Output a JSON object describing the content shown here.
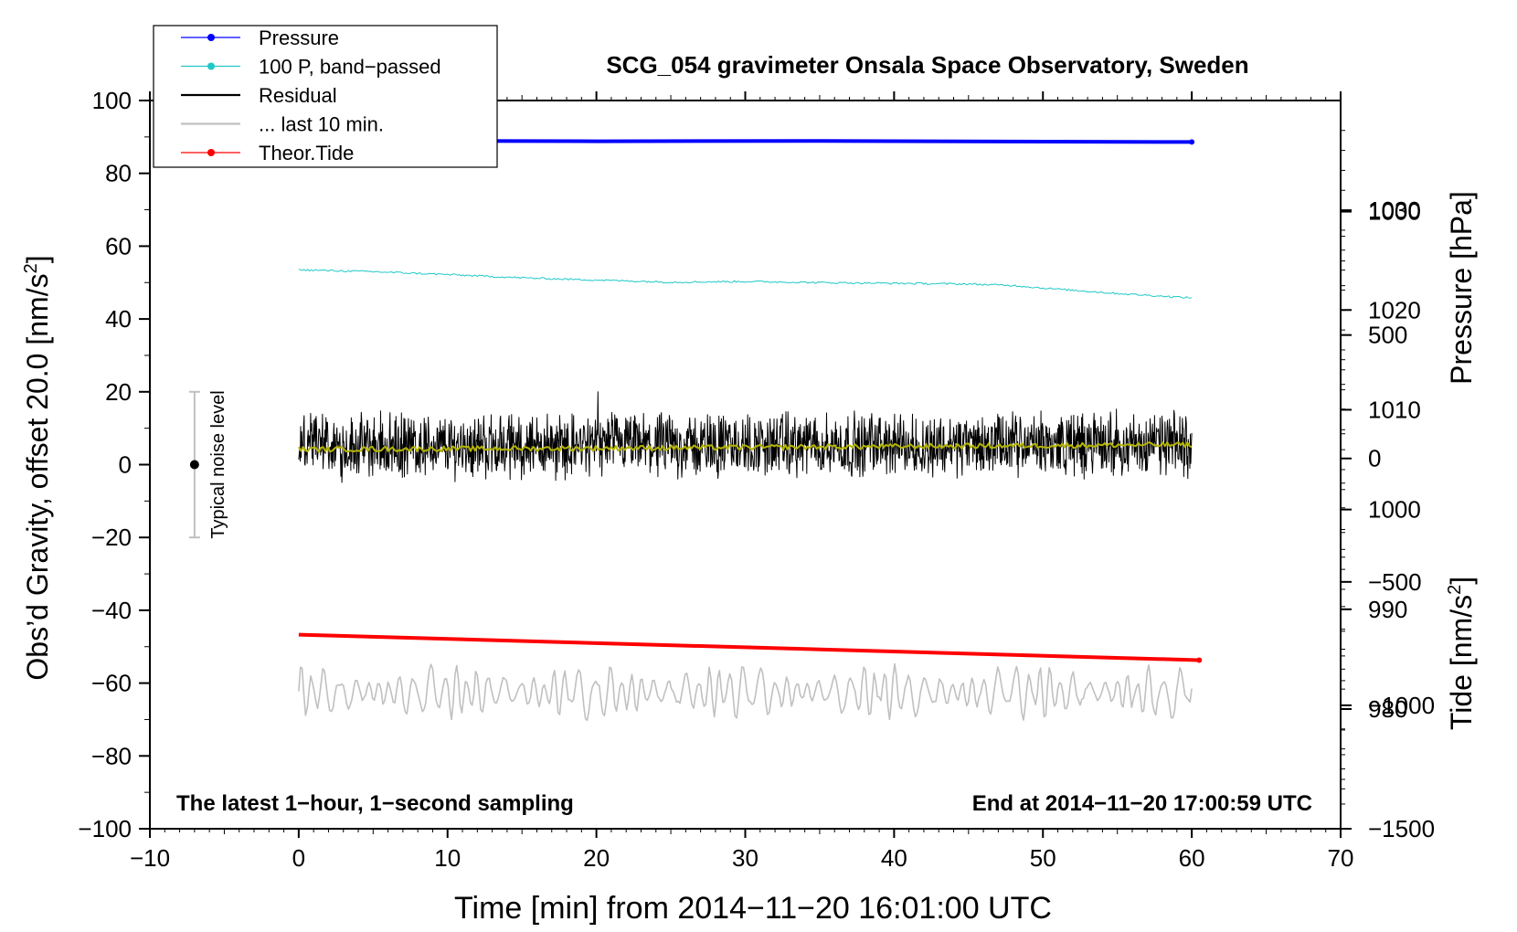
{
  "chart_data": {
    "type": "line",
    "title": "SCG_054 gravimeter Onsala Space Observatory, Sweden",
    "xlabel": "Time [min] from 2014−11−20 16:01:00 UTC",
    "ylabel_left": "Obs’d Gravity, offset 20.0 [nm/s",
    "ylabel_left_sup": "2",
    "ylabel_left_close": "]",
    "ylabel_right_pressure": "Pressure [hPa]",
    "ylabel_right_tide": "Tide [nm/s",
    "ylabel_right_tide_sup": "2",
    "ylabel_right_tide_close": "]",
    "xlim": [
      -10,
      70
    ],
    "xticks": [
      -10,
      0,
      10,
      20,
      30,
      40,
      50,
      60,
      70
    ],
    "xtick_labels": [
      "−10",
      "0",
      "10",
      "20",
      "30",
      "40",
      "50",
      "60",
      "70"
    ],
    "ylim": [
      -100,
      100
    ],
    "yticks": [
      -100,
      -80,
      -60,
      -40,
      -20,
      0,
      20,
      40,
      60,
      80,
      100
    ],
    "ytick_labels": [
      "−100",
      "−80",
      "−60",
      "−40",
      "−20",
      "0",
      "20",
      "40",
      "60",
      "80",
      "100"
    ],
    "pressure_axis": {
      "ylim": [
        968,
        1041
      ],
      "ticks": [
        980,
        990,
        1000,
        1010,
        1020,
        1030
      ],
      "tick_labels": [
        "980",
        "990",
        "1000",
        "1010",
        "1020",
        "1030"
      ]
    },
    "tide_axis": {
      "ylim": [
        -1500,
        1450
      ],
      "ticks": [
        -1500,
        -1000,
        -500,
        0,
        500,
        1000
      ],
      "tick_labels": [
        "−1500",
        "−1000",
        "−500",
        "0",
        "500",
        "1000"
      ]
    },
    "legend_position": "top-left",
    "legend": [
      {
        "label": "Pressure",
        "color": "#0000ff",
        "marker": true
      },
      {
        "label": "100 P, band−passed",
        "color": "#20c8c8",
        "marker": true
      },
      {
        "label": "Residual",
        "color": "#000000",
        "marker": false
      },
      {
        "label": "... last 10 min.",
        "color": "#c0c0c0",
        "marker": false
      },
      {
        "label": "Theor.Tide",
        "color": "#ff0000",
        "marker": true
      }
    ],
    "series": [
      {
        "name": "Pressure",
        "color": "#0000ff",
        "x": [
          0,
          20,
          35,
          50,
          60
        ],
        "y": [
          89.0,
          88.8,
          88.9,
          88.7,
          88.6
        ]
      },
      {
        "name": "100 P, band−passed",
        "color": "#20c8c8",
        "x": [
          0,
          5,
          10,
          15,
          20,
          25,
          30,
          35,
          40,
          45,
          48,
          50,
          55,
          60
        ],
        "y": [
          53.5,
          53.0,
          52.2,
          51.3,
          50.7,
          50.1,
          50.3,
          50.0,
          49.8,
          49.6,
          49.2,
          48.5,
          47.0,
          45.8
        ]
      },
      {
        "name": "Residual",
        "color": "#000000",
        "x_range": [
          0,
          60
        ],
        "center": 5.0,
        "range": [
          -11,
          20
        ]
      },
      {
        "name": "Residual smoothed",
        "color": "#b4b400",
        "x": [
          0,
          20,
          40,
          60
        ],
        "y": [
          4.2,
          4.5,
          5.0,
          5.5
        ]
      },
      {
        "name": "Theor.Tide",
        "color": "#ff0000",
        "x": [
          0,
          60.5
        ],
        "y": [
          -46.7,
          -53.7
        ]
      },
      {
        "name": "... last 10 min.",
        "color": "#c0c0c0",
        "x_range": [
          0,
          60
        ],
        "center": -62.5,
        "range": [
          -71,
          -53
        ]
      }
    ],
    "noise_bar": {
      "x": -7,
      "center": 0,
      "low": -20,
      "high": 20,
      "label": "Typical noise level"
    },
    "annotations": {
      "bottom_left": "The latest 1−hour, 1−second sampling",
      "bottom_right": "End at 2014−11−20 17:00:59 UTC"
    }
  }
}
